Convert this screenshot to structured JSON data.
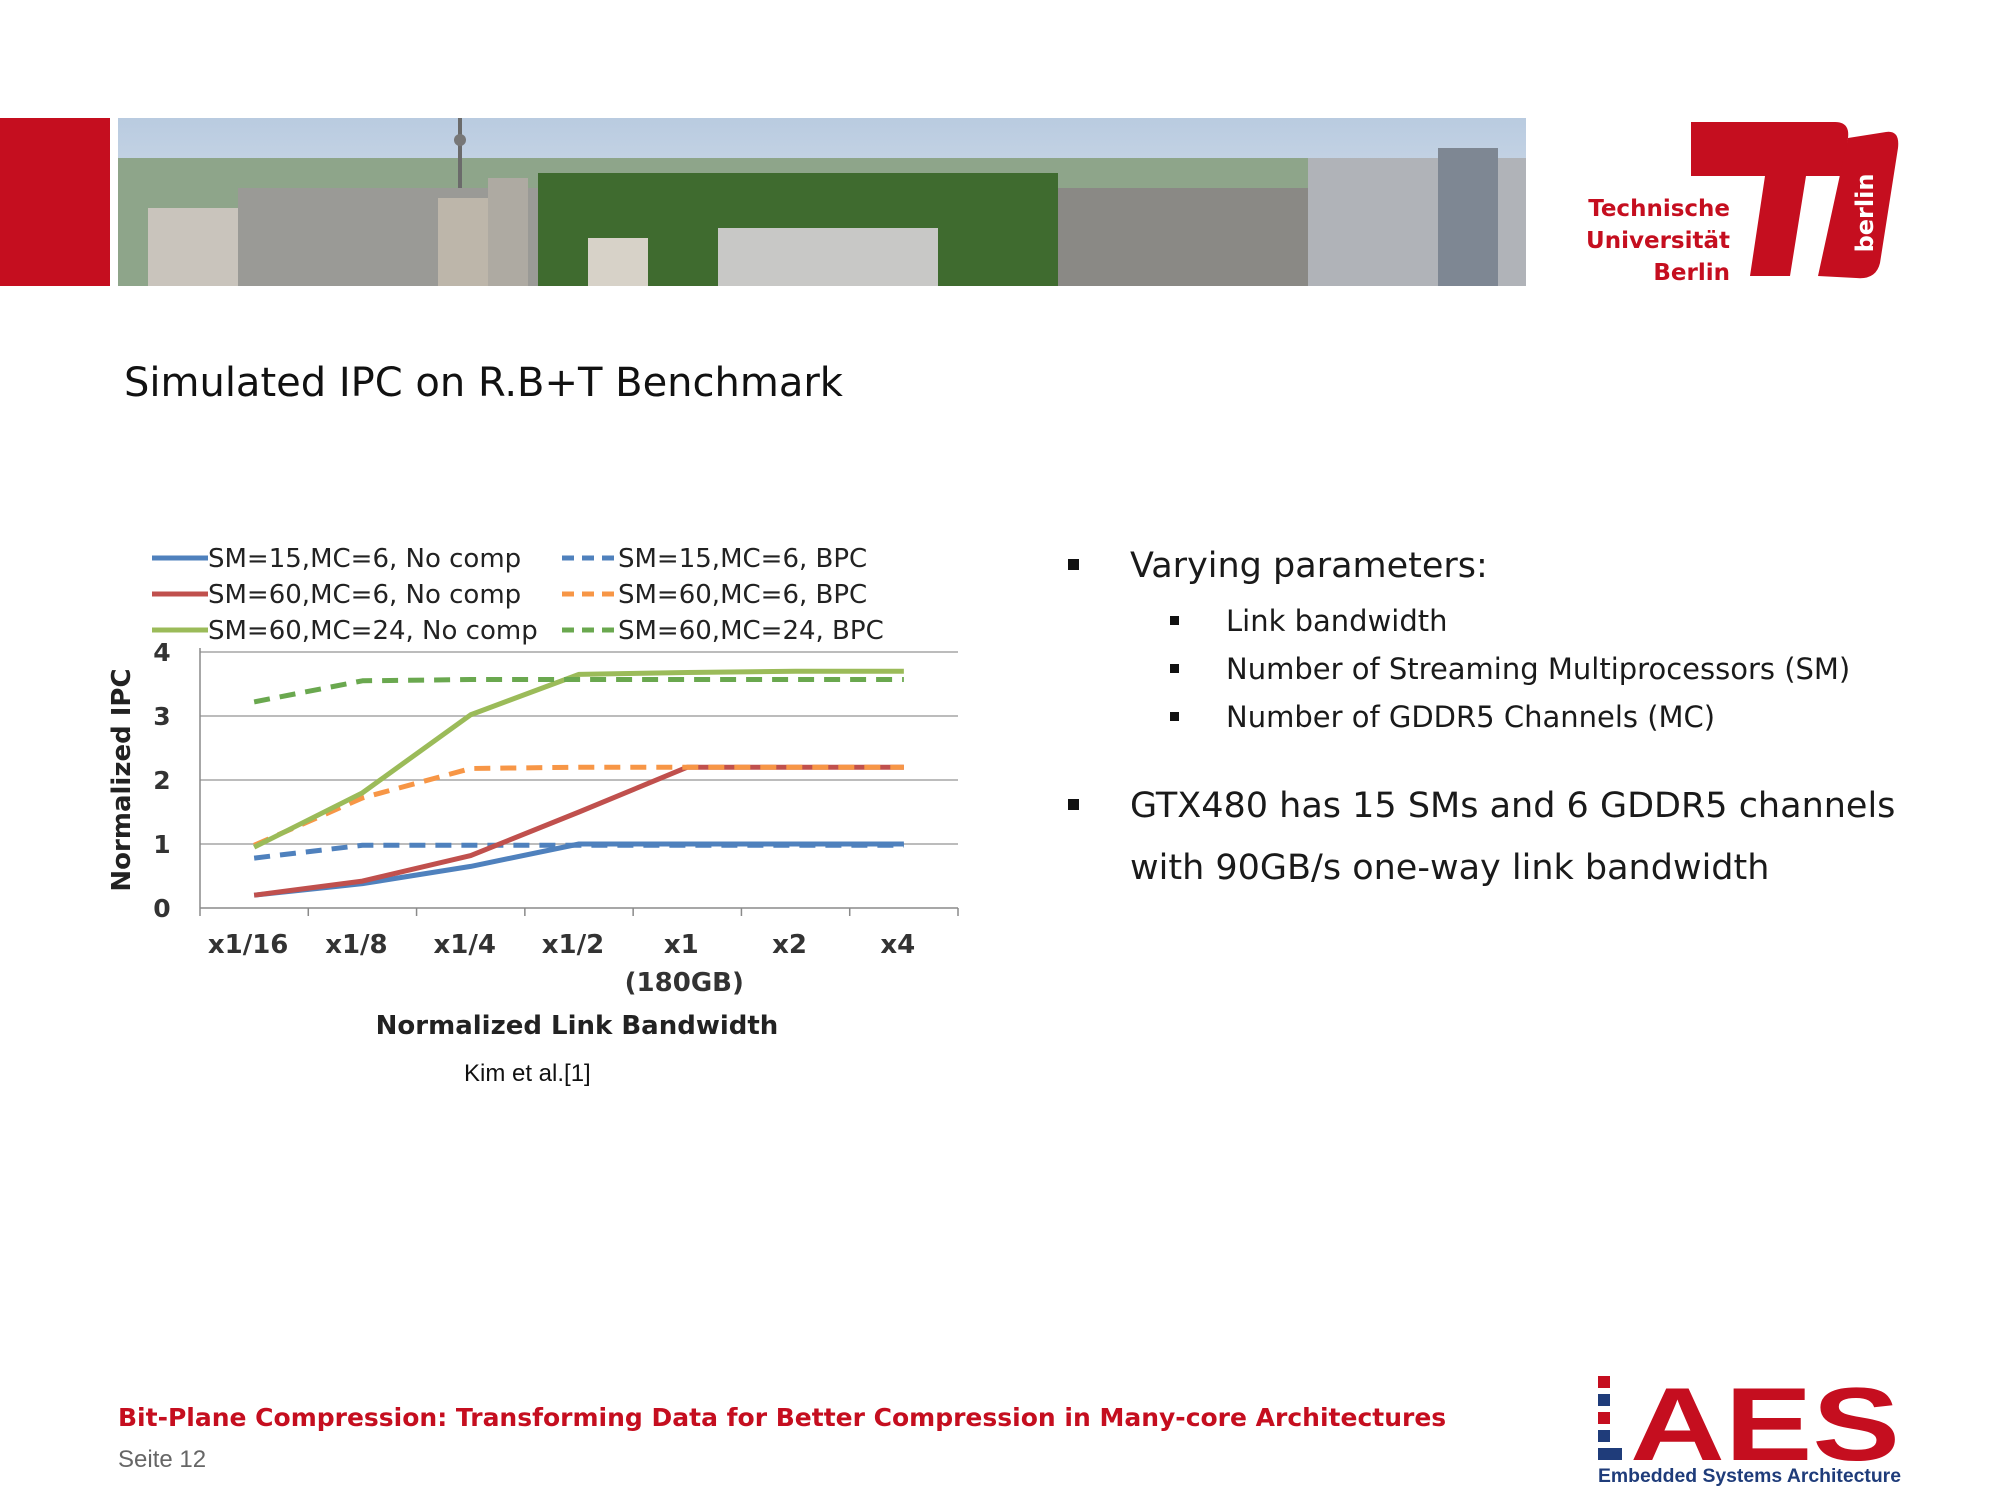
{
  "slide": {
    "title": "Simulated IPC on R.B+T Benchmark",
    "credit": "Kim et al.[1]",
    "footer_title": "Bit-Plane Compression: Transforming Data for Better Compression in Many-core Architectures",
    "footer_page": "Seite 12"
  },
  "logos": {
    "tu_line1": "Technische",
    "tu_line2": "Universität",
    "tu_line3": "Berlin",
    "tu_vertical": "berlin",
    "aes_mark": "AES",
    "aes_sub": "Embedded Systems Architecture"
  },
  "bullets": {
    "b1": "Varying parameters:",
    "b1_sub": [
      "Link bandwidth",
      "Number of Streaming Multiprocessors (SM)",
      "Number of GDDR5 Channels (MC)"
    ],
    "b2_line1": "GTX480 has 15 SMs and 6 GDDR5 channels",
    "b2_line2": "with 90GB/s one-way link bandwidth"
  },
  "colors": {
    "brand_red": "#c50e1f",
    "blue": "#4f81bd",
    "red": "#c0504d",
    "green": "#9bbb59",
    "orange": "#f79646",
    "dashgreen": "#6aa84f"
  },
  "chart_data": {
    "type": "line",
    "categories": [
      "x1/16",
      "x1/8",
      "x1/4",
      "x1/2",
      "x1",
      "x2",
      "x4"
    ],
    "category_sublabels": [
      "",
      "",
      "",
      "",
      "(180GB)",
      "",
      ""
    ],
    "xlabel": "Normalized Link Bandwidth",
    "ylabel": "Normalized IPC",
    "ylim": [
      0,
      4
    ],
    "yticks": [
      0,
      1,
      2,
      3,
      4
    ],
    "grid": true,
    "legend_position": "top",
    "series": [
      {
        "name": "SM=15,MC=6, No comp",
        "color": "#4f81bd",
        "dashed": false,
        "values": [
          0.2,
          0.38,
          0.65,
          1.0,
          1.0,
          1.0,
          1.0
        ]
      },
      {
        "name": "SM=15,MC=6, BPC",
        "color": "#4f81bd",
        "dashed": true,
        "values": [
          0.78,
          0.98,
          0.98,
          0.98,
          0.98,
          0.98,
          0.98
        ]
      },
      {
        "name": "SM=60,MC=6, No comp",
        "color": "#c0504d",
        "dashed": false,
        "values": [
          0.2,
          0.42,
          0.82,
          1.5,
          2.2,
          2.2,
          2.2
        ]
      },
      {
        "name": "SM=60,MC=6, BPC",
        "color": "#f79646",
        "dashed": true,
        "values": [
          0.98,
          1.72,
          2.18,
          2.2,
          2.2,
          2.2,
          2.2
        ]
      },
      {
        "name": "SM=60,MC=24, No comp",
        "color": "#9bbb59",
        "dashed": false,
        "values": [
          0.95,
          1.8,
          3.02,
          3.65,
          3.68,
          3.7,
          3.7
        ]
      },
      {
        "name": "SM=60,MC=24, BPC",
        "color": "#6aa84f",
        "dashed": true,
        "values": [
          3.22,
          3.55,
          3.57,
          3.57,
          3.57,
          3.57,
          3.57
        ]
      }
    ]
  }
}
